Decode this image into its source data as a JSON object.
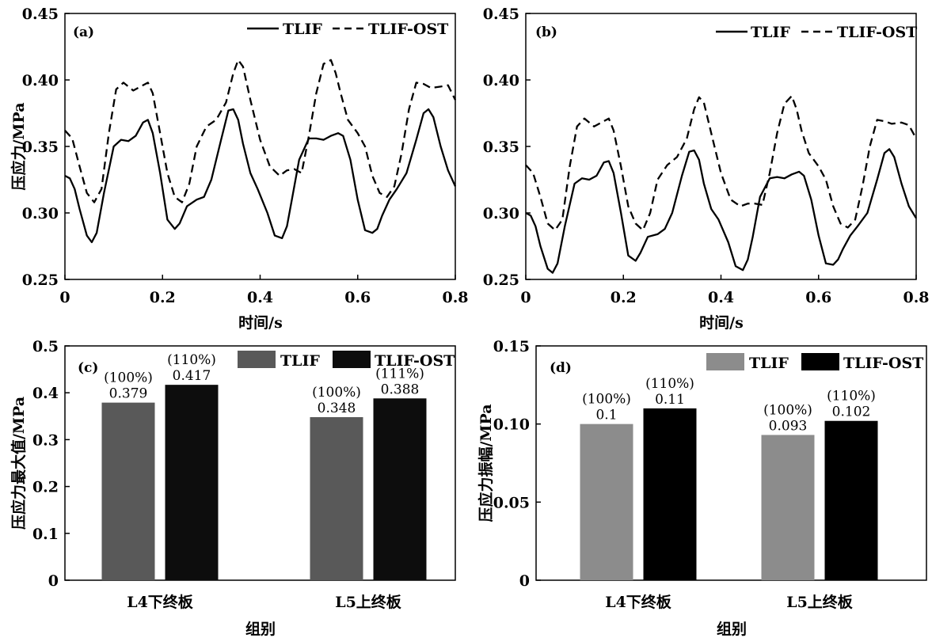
{
  "chart_data": [
    {
      "type": "line",
      "panel": "(a)",
      "xlabel": "时间/s",
      "ylabel": "压应力/MPa",
      "xlim": [
        0,
        0.8
      ],
      "ylim": [
        0.25,
        0.45
      ],
      "xticks": [
        "0",
        "0.2",
        "0.4",
        "0.6",
        "0.8"
      ],
      "yticks": [
        "0.25",
        "0.30",
        "0.35",
        "0.40",
        "0.45"
      ],
      "grid": false,
      "legend": "top-right",
      "series": [
        {
          "name": "TLIF",
          "style": "solid",
          "x": [
            0,
            0.01,
            0.02,
            0.03,
            0.045,
            0.055,
            0.065,
            0.08,
            0.1,
            0.115,
            0.13,
            0.145,
            0.16,
            0.17,
            0.18,
            0.195,
            0.21,
            0.225,
            0.235,
            0.25,
            0.27,
            0.285,
            0.3,
            0.32,
            0.335,
            0.345,
            0.355,
            0.365,
            0.38,
            0.395,
            0.415,
            0.43,
            0.445,
            0.455,
            0.465,
            0.48,
            0.5,
            0.515,
            0.53,
            0.545,
            0.56,
            0.57,
            0.585,
            0.6,
            0.615,
            0.63,
            0.64,
            0.65,
            0.665,
            0.68,
            0.7,
            0.72,
            0.735,
            0.745,
            0.755,
            0.77,
            0.785,
            0.8
          ],
          "y": [
            0.328,
            0.326,
            0.318,
            0.303,
            0.283,
            0.278,
            0.285,
            0.315,
            0.35,
            0.355,
            0.354,
            0.358,
            0.368,
            0.37,
            0.36,
            0.33,
            0.295,
            0.288,
            0.292,
            0.305,
            0.31,
            0.312,
            0.325,
            0.355,
            0.377,
            0.378,
            0.37,
            0.352,
            0.33,
            0.318,
            0.3,
            0.283,
            0.281,
            0.29,
            0.31,
            0.34,
            0.356,
            0.356,
            0.355,
            0.358,
            0.36,
            0.358,
            0.34,
            0.31,
            0.287,
            0.285,
            0.288,
            0.298,
            0.31,
            0.318,
            0.33,
            0.355,
            0.375,
            0.378,
            0.372,
            0.35,
            0.332,
            0.32
          ]
        },
        {
          "name": "TLIF-OST",
          "style": "dashed",
          "x": [
            0,
            0.015,
            0.03,
            0.045,
            0.06,
            0.075,
            0.09,
            0.105,
            0.12,
            0.14,
            0.155,
            0.17,
            0.18,
            0.195,
            0.21,
            0.225,
            0.24,
            0.255,
            0.27,
            0.29,
            0.31,
            0.33,
            0.345,
            0.355,
            0.365,
            0.38,
            0.4,
            0.42,
            0.44,
            0.455,
            0.47,
            0.485,
            0.5,
            0.515,
            0.53,
            0.545,
            0.555,
            0.565,
            0.58,
            0.6,
            0.615,
            0.63,
            0.645,
            0.66,
            0.675,
            0.69,
            0.705,
            0.72,
            0.735,
            0.75,
            0.77,
            0.785,
            0.8
          ],
          "y": [
            0.362,
            0.356,
            0.335,
            0.315,
            0.308,
            0.318,
            0.36,
            0.393,
            0.398,
            0.392,
            0.395,
            0.398,
            0.39,
            0.36,
            0.33,
            0.312,
            0.308,
            0.322,
            0.35,
            0.365,
            0.37,
            0.383,
            0.405,
            0.415,
            0.41,
            0.385,
            0.355,
            0.335,
            0.328,
            0.332,
            0.333,
            0.33,
            0.358,
            0.39,
            0.412,
            0.415,
            0.405,
            0.39,
            0.37,
            0.36,
            0.35,
            0.328,
            0.315,
            0.312,
            0.32,
            0.345,
            0.378,
            0.398,
            0.397,
            0.394,
            0.395,
            0.396,
            0.385
          ]
        }
      ]
    },
    {
      "type": "line",
      "panel": "(b)",
      "xlabel": "时间/s",
      "ylabel": "",
      "xlim": [
        0,
        0.8
      ],
      "ylim": [
        0.25,
        0.45
      ],
      "xticks": [
        "0",
        "0.2",
        "0.4",
        "0.6",
        "0.8"
      ],
      "yticks": [
        "0.25",
        "0.30",
        "0.35",
        "0.40",
        "0.45"
      ],
      "grid": false,
      "legend": "top-right",
      "series": [
        {
          "name": "TLIF",
          "style": "solid",
          "x": [
            0,
            0.01,
            0.02,
            0.03,
            0.045,
            0.055,
            0.065,
            0.08,
            0.1,
            0.115,
            0.13,
            0.145,
            0.16,
            0.17,
            0.18,
            0.195,
            0.21,
            0.225,
            0.235,
            0.25,
            0.27,
            0.285,
            0.3,
            0.32,
            0.335,
            0.345,
            0.355,
            0.365,
            0.38,
            0.395,
            0.415,
            0.43,
            0.445,
            0.455,
            0.465,
            0.48,
            0.5,
            0.515,
            0.53,
            0.545,
            0.56,
            0.57,
            0.585,
            0.6,
            0.615,
            0.63,
            0.64,
            0.65,
            0.665,
            0.68,
            0.7,
            0.72,
            0.735,
            0.745,
            0.755,
            0.77,
            0.785,
            0.8
          ],
          "y": [
            0.3,
            0.298,
            0.29,
            0.275,
            0.258,
            0.255,
            0.262,
            0.29,
            0.322,
            0.326,
            0.325,
            0.328,
            0.338,
            0.339,
            0.33,
            0.3,
            0.268,
            0.264,
            0.27,
            0.282,
            0.284,
            0.288,
            0.3,
            0.328,
            0.346,
            0.347,
            0.34,
            0.322,
            0.303,
            0.295,
            0.278,
            0.26,
            0.257,
            0.265,
            0.282,
            0.312,
            0.326,
            0.327,
            0.326,
            0.329,
            0.331,
            0.328,
            0.31,
            0.283,
            0.262,
            0.261,
            0.265,
            0.273,
            0.283,
            0.29,
            0.3,
            0.325,
            0.345,
            0.348,
            0.342,
            0.322,
            0.305,
            0.296
          ]
        },
        {
          "name": "TLIF-OST",
          "style": "dashed",
          "x": [
            0,
            0.015,
            0.03,
            0.045,
            0.06,
            0.075,
            0.09,
            0.105,
            0.12,
            0.14,
            0.155,
            0.17,
            0.18,
            0.195,
            0.21,
            0.225,
            0.24,
            0.255,
            0.27,
            0.29,
            0.31,
            0.33,
            0.345,
            0.355,
            0.365,
            0.38,
            0.4,
            0.42,
            0.44,
            0.455,
            0.47,
            0.485,
            0.5,
            0.515,
            0.53,
            0.545,
            0.555,
            0.565,
            0.58,
            0.6,
            0.615,
            0.63,
            0.645,
            0.66,
            0.675,
            0.69,
            0.705,
            0.72,
            0.735,
            0.75,
            0.77,
            0.785,
            0.8
          ],
          "y": [
            0.336,
            0.33,
            0.312,
            0.292,
            0.287,
            0.295,
            0.335,
            0.365,
            0.371,
            0.365,
            0.368,
            0.371,
            0.362,
            0.335,
            0.305,
            0.292,
            0.287,
            0.3,
            0.325,
            0.336,
            0.342,
            0.356,
            0.378,
            0.387,
            0.383,
            0.36,
            0.33,
            0.31,
            0.305,
            0.307,
            0.307,
            0.306,
            0.33,
            0.36,
            0.382,
            0.388,
            0.378,
            0.362,
            0.345,
            0.335,
            0.325,
            0.305,
            0.292,
            0.289,
            0.295,
            0.32,
            0.35,
            0.37,
            0.369,
            0.367,
            0.368,
            0.366,
            0.356
          ]
        }
      ]
    },
    {
      "type": "bar",
      "panel": "(c)",
      "xlabel": "组别",
      "ylabel": "压应力最大值/MPa",
      "categories": [
        "L4下终板",
        "L5上终板"
      ],
      "ylim": [
        0,
        0.5
      ],
      "yticks": [
        "0",
        "0.1",
        "0.2",
        "0.3",
        "0.4",
        "0.5"
      ],
      "legend": "top-right",
      "series": [
        {
          "name": "TLIF",
          "color": "#595959",
          "values": [
            0.379,
            0.348
          ],
          "value_labels": [
            "0.379",
            "0.348"
          ],
          "pct_labels": [
            "(100%)",
            "(100%)"
          ]
        },
        {
          "name": "TLIF-OST",
          "color": "#0d0d0d",
          "values": [
            0.417,
            0.388
          ],
          "value_labels": [
            "0.417",
            "0.388"
          ],
          "pct_labels": [
            "(110%)",
            "(111%)"
          ]
        }
      ]
    },
    {
      "type": "bar",
      "panel": "(d)",
      "xlabel": "组别",
      "ylabel": "压应力振幅/MPa",
      "categories": [
        "L4下终板",
        "L5上终板"
      ],
      "ylim": [
        0,
        0.15
      ],
      "yticks": [
        "0",
        "0.05",
        "0.10",
        "0.15"
      ],
      "legend": "top-right",
      "series": [
        {
          "name": "TLIF",
          "color": "#8c8c8c",
          "values": [
            0.1,
            0.093
          ],
          "value_labels": [
            "0.1",
            "0.093"
          ],
          "pct_labels": [
            "(100%)",
            "(100%)"
          ]
        },
        {
          "name": "TLIF-OST",
          "color": "#000000",
          "values": [
            0.11,
            0.102
          ],
          "value_labels": [
            "0.11",
            "0.102"
          ],
          "pct_labels": [
            "(110%)",
            "(110%)"
          ]
        }
      ]
    }
  ]
}
